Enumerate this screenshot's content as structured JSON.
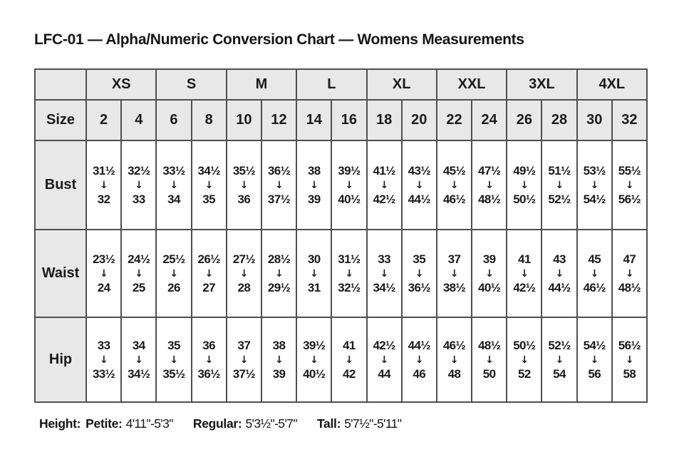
{
  "title": "LFC-01 — Alpha/Numeric Conversion Chart — Womens Measurements",
  "table": {
    "corner_label": "",
    "size_groups": [
      "XS",
      "S",
      "M",
      "L",
      "XL",
      "XXL",
      "3XL",
      "4XL"
    ],
    "size_row_label": "Size",
    "sizes": [
      "2",
      "4",
      "6",
      "8",
      "10",
      "12",
      "14",
      "16",
      "18",
      "20",
      "22",
      "24",
      "26",
      "28",
      "30",
      "32"
    ],
    "arrow_icon": "↓",
    "rows": [
      {
        "label": "Bust",
        "cells": [
          {
            "from": "31½",
            "to": "32"
          },
          {
            "from": "32½",
            "to": "33"
          },
          {
            "from": "33½",
            "to": "34"
          },
          {
            "from": "34½",
            "to": "35"
          },
          {
            "from": "35½",
            "to": "36"
          },
          {
            "from": "36½",
            "to": "37½"
          },
          {
            "from": "38",
            "to": "39"
          },
          {
            "from": "39½",
            "to": "40½"
          },
          {
            "from": "41½",
            "to": "42½"
          },
          {
            "from": "43½",
            "to": "44½"
          },
          {
            "from": "45½",
            "to": "46½"
          },
          {
            "from": "47½",
            "to": "48½"
          },
          {
            "from": "49½",
            "to": "50½"
          },
          {
            "from": "51½",
            "to": "52½"
          },
          {
            "from": "53½",
            "to": "54½"
          },
          {
            "from": "55½",
            "to": "56½"
          }
        ]
      },
      {
        "label": "Waist",
        "cells": [
          {
            "from": "23½",
            "to": "24"
          },
          {
            "from": "24½",
            "to": "25"
          },
          {
            "from": "25½",
            "to": "26"
          },
          {
            "from": "26½",
            "to": "27"
          },
          {
            "from": "27½",
            "to": "28"
          },
          {
            "from": "28½",
            "to": "29½"
          },
          {
            "from": "30",
            "to": "31"
          },
          {
            "from": "31½",
            "to": "32½"
          },
          {
            "from": "33",
            "to": "34½"
          },
          {
            "from": "35",
            "to": "36½"
          },
          {
            "from": "37",
            "to": "38½"
          },
          {
            "from": "39",
            "to": "40½"
          },
          {
            "from": "41",
            "to": "42½"
          },
          {
            "from": "43",
            "to": "44½"
          },
          {
            "from": "45",
            "to": "46½"
          },
          {
            "from": "47",
            "to": "48½"
          }
        ]
      },
      {
        "label": "Hip",
        "cells": [
          {
            "from": "33",
            "to": "33½"
          },
          {
            "from": "34",
            "to": "34½"
          },
          {
            "from": "35",
            "to": "35½"
          },
          {
            "from": "36",
            "to": "36½"
          },
          {
            "from": "37",
            "to": "37½"
          },
          {
            "from": "38",
            "to": "39"
          },
          {
            "from": "39½",
            "to": "40½"
          },
          {
            "from": "41",
            "to": "42"
          },
          {
            "from": "42½",
            "to": "44"
          },
          {
            "from": "44½",
            "to": "46"
          },
          {
            "from": "46½",
            "to": "48"
          },
          {
            "from": "48½",
            "to": "50"
          },
          {
            "from": "50½",
            "to": "52"
          },
          {
            "from": "52½",
            "to": "54"
          },
          {
            "from": "54½",
            "to": "56"
          },
          {
            "from": "56½",
            "to": "58"
          }
        ]
      }
    ]
  },
  "footer": {
    "height_label": "Height:",
    "segments": [
      {
        "label": "Petite:",
        "value": "4'11\"-5'3\""
      },
      {
        "label": "Regular:",
        "value": "5'3½\"-5'7\""
      },
      {
        "label": "Tall:",
        "value": "5'7½\"-5'11\""
      }
    ]
  },
  "colors": {
    "header_fill": "#e8e8e8",
    "cell_fill": "#ffffff",
    "border": "#4f4f4f",
    "text": "#141414"
  }
}
